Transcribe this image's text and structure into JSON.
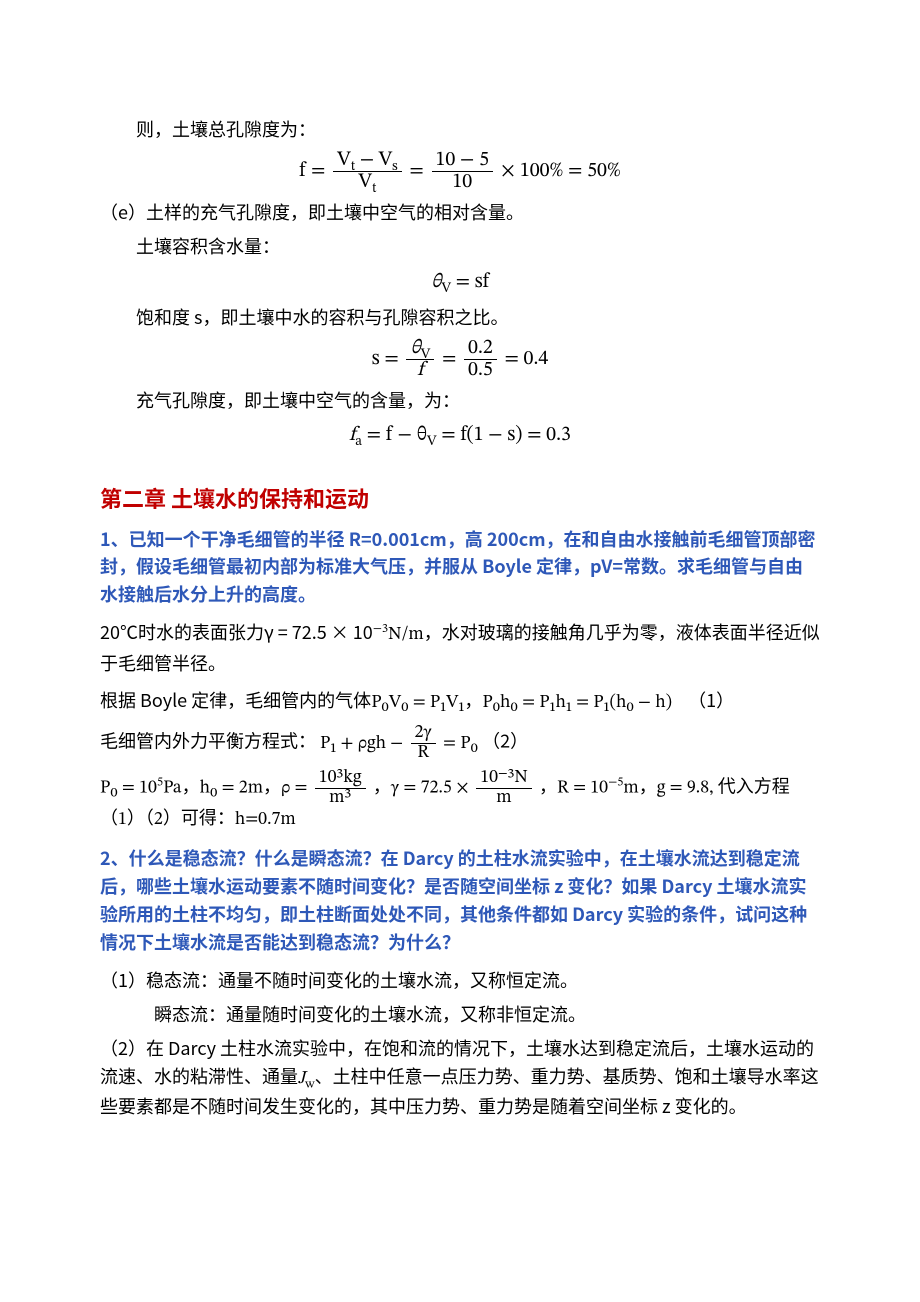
{
  "colors": {
    "body_bg": "#ffffff",
    "text_color": "#000000",
    "chapter_color": "#c00000",
    "question_color": "#2e58b8"
  },
  "typography": {
    "body_fontsize_pt": 14,
    "formula_fontsize_pt": 15,
    "chapter_fontsize_pt": 17,
    "body_family": "Microsoft YaHei / SimSun",
    "math_family": "Cambria Math / Times"
  },
  "p1": "则，土壤总孔隙度为：",
  "eq1_lhs": "f =",
  "eq1_num1": "V",
  "eq1_num1_sub": "t",
  "eq1_minus": " − ",
  "eq1_num2": "V",
  "eq1_num2_sub": "s",
  "eq1_den": "V",
  "eq1_den_sub": "t",
  "eq1_mid": " = ",
  "eq1_num3": "10 − 5",
  "eq1_den3": "10",
  "eq1_tail": " × 100% = 50%",
  "p2": "（e）土样的充气孔隙度，即土壤中空气的相对含量。",
  "p3": "土壤容积含水量：",
  "eq2": "θ",
  "eq2_sub": "V",
  "eq2_rhs": " = sf",
  "p4": "饱和度 s，即土壤中水的容积与孔隙容积之比。",
  "eq3_lhs": "s = ",
  "eq3_num": "θ",
  "eq3_num_sub": "V",
  "eq3_den": "f",
  "eq3_mid": " = ",
  "eq3_num2": "0.2",
  "eq3_den2": "0.5",
  "eq3_tail": " = 0.4",
  "p5": "充气孔隙度，即土壤中空气的含量，为：",
  "eq4_a": "f",
  "eq4_a_sub": "a",
  "eq4_b": " = f − θ",
  "eq4_b_sub": "V",
  "eq4_c": " = f(1 − s) = 0.3",
  "chapter2": "第二章  土壤水的保持和运动",
  "q1": "1、已知一个干净毛细管的半径 R=0.001cm，高 200cm，在和自由水接触前毛细管顶部密封，假设毛细管最初内部为标准大气压，并服从 Boyle 定律，pV=常数。求毛细管与自由水接触后水分上升的高度。",
  "p6a": "20℃时水的表面张力γ = 72.5 × 10",
  "p6_exp": "−3",
  "p6b": "N/m，水对玻璃的接触角几乎为零，液体表面半径近似于毛细管半径。",
  "p7a": "根据 Boyle 定律，毛细管内的气体",
  "p7_math": "P₀V₀ = P₁V₁，P₀h₀ = P₁h₁ = P₁(h₀ − h)",
  "p7_tag": "（1）",
  "p8a": "毛细管内外力平衡方程式：",
  "p8_lhs": "P₁ + ρgh − ",
  "p8_num": "2γ",
  "p8_den": "R",
  "p8_rhs": " = P₀",
  "p8_tag": "（2）",
  "p9a": "P₀ = 10",
  "p9a_exp": "5",
  "p9b": "Pa，h₀ = 2m，ρ = ",
  "p9_num1": "10³kg",
  "p9_den1": "m³",
  "p9c": "，γ = 72.5 × ",
  "p9_num2": "10⁻³N",
  "p9_den2": "m",
  "p9d": "，R = 10",
  "p9d_exp": "−5",
  "p9e": "m，g = 9.8,    代入方程（1）（2）可得：h=0.7m",
  "q2": "2、什么是稳态流？什么是瞬态流？在 Darcy 的土柱水流实验中，在土壤水流达到稳定流后，哪些土壤水运动要素不随时间变化？是否随空间坐标 z 变化？如果 Darcy 土壤水流实验所用的土柱不均匀，即土柱断面处处不同，其他条件都如 Darcy 实验的条件，试问这种情况下土壤水流是否能达到稳态流？为什么？",
  "a2_1": "（1）稳态流：通量不随时间变化的土壤水流，又称恒定流。",
  "a2_1b": "瞬态流：通量随时间变化的土壤水流，又称非恒定流。",
  "a2_2a": "（2）在 Darcy 土柱水流实验中，在饱和流的情况下，土壤水达到稳定流后，土壤水运动的流速、水的粘滞性、通量",
  "a2_jw": "J",
  "a2_jw_sub": "w",
  "a2_2b": "、土柱中任意一点压力势、重力势、基质势、饱和土壤导水率这些要素都是不随时间发生变化的，其中压力势、重力势是随着空间坐标 z 变化的。"
}
